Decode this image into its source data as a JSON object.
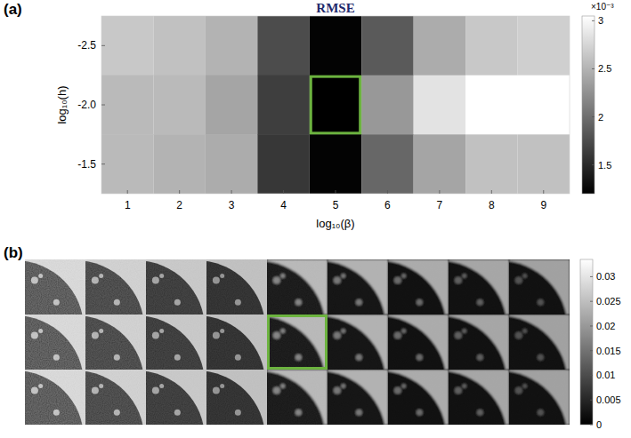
{
  "chart_data": [
    {
      "type": "heatmap",
      "panel_label": "(a)",
      "title": "RMSE",
      "x_label": "log₁₀(β)",
      "y_label": "log₁₀(h)",
      "x": [
        1,
        2,
        3,
        4,
        5,
        6,
        7,
        8,
        9
      ],
      "y": [
        -2.5,
        -2,
        -1.5
      ],
      "xlim": [
        0.5,
        9.5
      ],
      "ylim": [
        -2.75,
        -1.25
      ],
      "xticks": [
        1,
        2,
        3,
        4,
        5,
        6,
        7,
        8,
        9
      ],
      "yticks": [
        -2.5,
        {
          "value": -2,
          "label": "-2.0"
        },
        -1.5
      ],
      "cells": [
        [
          0.00265,
          0.0026,
          0.0025,
          0.00175,
          0.00122,
          0.00185,
          0.00245,
          0.00265,
          0.0027
        ],
        [
          0.00255,
          0.00255,
          0.0024,
          0.00165,
          0.0012,
          0.0023,
          0.00285,
          0.00305,
          0.00305
        ],
        [
          0.00255,
          0.0025,
          0.00245,
          0.0016,
          0.00122,
          0.00195,
          0.0024,
          0.0026,
          0.0026
        ]
      ],
      "colorbar": {
        "range": [
          0.0012,
          0.00305
        ],
        "ticks": [
          {
            "value": 0.0015,
            "label": "1.5"
          },
          {
            "value": 0.002,
            "label": "2"
          },
          {
            "value": 0.0025,
            "label": "2.5"
          },
          {
            "value": 0.003,
            "label": "3"
          }
        ],
        "label": "×10⁻³"
      }
    },
    {
      "type": "image_grid",
      "panel_label": "(b)",
      "rows": 3,
      "columns": 9,
      "colorbar": {
        "range": [
          0,
          0.0335
        ],
        "ticks": [
          0,
          0.005,
          0.01,
          0.015,
          0.02,
          0.025,
          0.03
        ]
      }
    }
  ]
}
